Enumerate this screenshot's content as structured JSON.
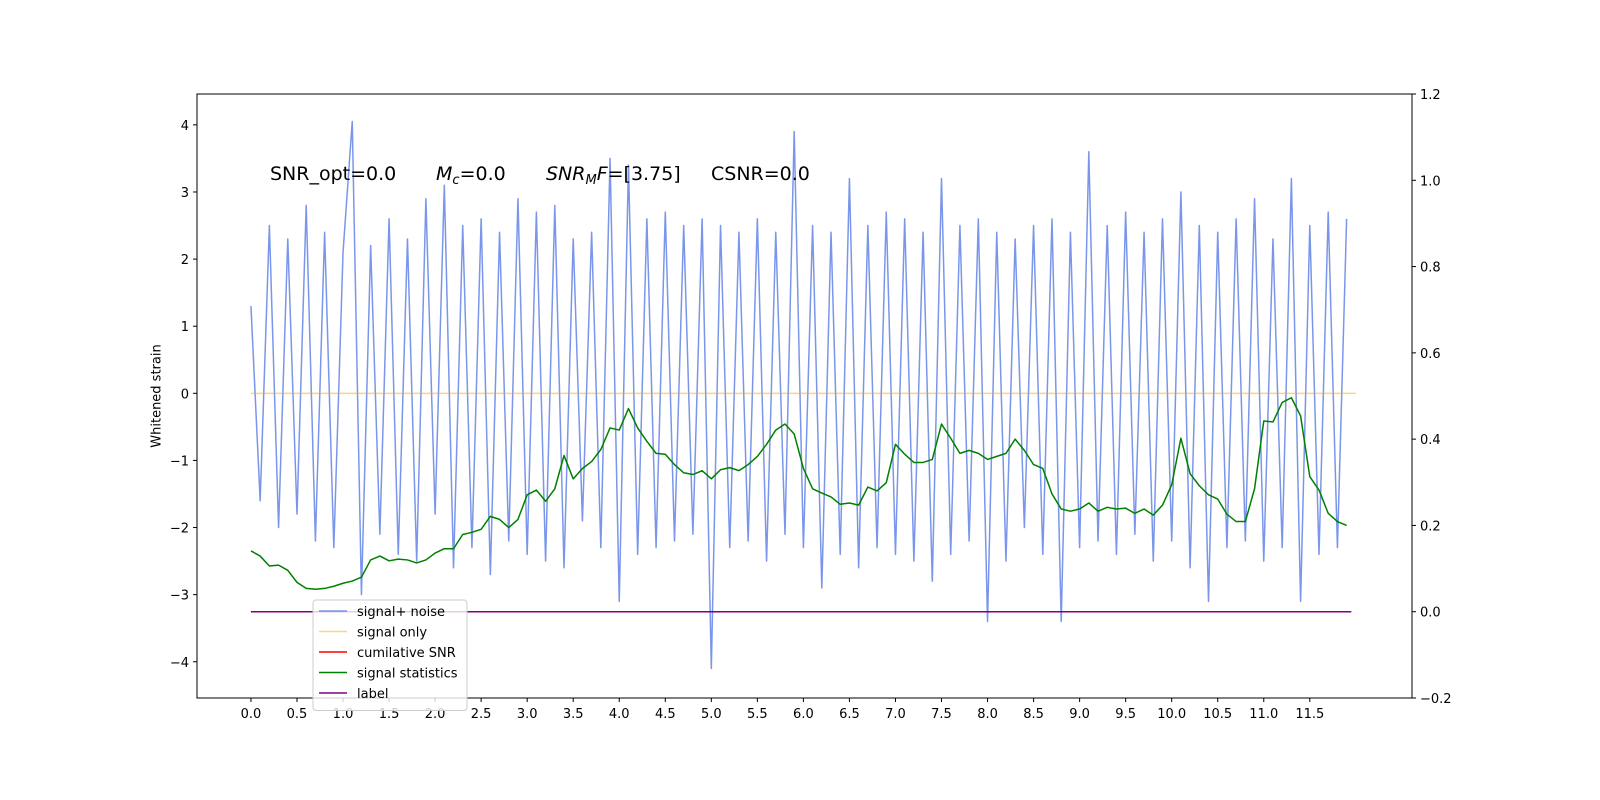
{
  "chart_data": {
    "type": "line",
    "ylabel": "Whitened strain",
    "annotations": [
      [
        {
          "text": "SNR_opt=0.0"
        }
      ],
      [
        {
          "text": "M",
          "style": "italic"
        },
        {
          "text": "c",
          "style": "sub"
        },
        {
          "text": "=0.0"
        }
      ],
      [
        {
          "text": "SNR",
          "style": "italic"
        },
        {
          "text": "M",
          "style": "sub"
        },
        {
          "text": "F",
          "style": "italic"
        },
        {
          "text": "=[3.75]"
        }
      ],
      [
        {
          "text": "CSNR=0.0"
        }
      ]
    ],
    "xlim": [
      -0.586,
      12.61
    ],
    "ylim": [
      -4.54,
      4.46
    ],
    "y2lim": [
      -0.2,
      1.2
    ],
    "xticks": [
      {
        "value": 0,
        "label": "0.0"
      },
      0.5,
      {
        "value": 1,
        "label": "1.0"
      },
      1.5,
      {
        "value": 2,
        "label": "2.0"
      },
      2.5,
      {
        "value": 3,
        "label": "3.0"
      },
      3.5,
      {
        "value": 4,
        "label": "4.0"
      },
      4.5,
      {
        "value": 5,
        "label": "5.0"
      },
      5.5,
      {
        "value": 6,
        "label": "6.0"
      },
      6.5,
      {
        "value": 7,
        "label": "7.0"
      },
      7.5,
      {
        "value": 8,
        "label": "8.0"
      },
      8.5,
      {
        "value": 9,
        "label": "9.0"
      },
      9.5,
      {
        "value": 10,
        "label": "10.0"
      },
      10.5,
      {
        "value": 11,
        "label": "11.0"
      },
      11.5
    ],
    "yticks": [
      {
        "value": -4,
        "label": "−4"
      },
      {
        "value": -3,
        "label": "−3"
      },
      {
        "value": -2,
        "label": "−2"
      },
      {
        "value": -1,
        "label": "−1"
      },
      0,
      1,
      2,
      3,
      4
    ],
    "y2ticks": [
      {
        "value": -0.2,
        "label": "−0.2"
      },
      {
        "value": 0,
        "label": "0.0"
      },
      0.2,
      0.4,
      0.6,
      0.8,
      {
        "value": 1,
        "label": "1.0"
      },
      1.2
    ],
    "x": [
      0,
      0.1,
      0.2,
      0.3,
      0.4,
      0.5,
      0.6,
      0.7,
      0.8,
      0.9,
      1,
      1.1,
      1.2,
      1.3,
      1.4,
      1.5,
      1.6,
      1.7,
      1.8,
      1.9,
      2,
      2.1,
      2.2,
      2.3,
      2.4,
      2.5,
      2.6,
      2.7,
      2.8,
      2.9,
      3,
      3.1,
      3.2,
      3.3,
      3.4,
      3.5,
      3.6,
      3.7,
      3.8,
      3.9,
      4,
      4.1,
      4.2,
      4.3,
      4.4,
      4.5,
      4.6,
      4.7,
      4.8,
      4.9,
      5,
      5.1,
      5.2,
      5.3,
      5.4,
      5.5,
      5.6,
      5.7,
      5.8,
      5.9,
      6,
      6.1,
      6.2,
      6.3,
      6.4,
      6.5,
      6.6,
      6.7,
      6.8,
      6.9,
      7,
      7.1,
      7.2,
      7.3,
      7.4,
      7.5,
      7.6,
      7.7,
      7.8,
      7.9,
      8,
      8.1,
      8.2,
      8.3,
      8.4,
      8.5,
      8.6,
      8.7,
      8.8,
      8.9,
      9,
      9.1,
      9.2,
      9.3,
      9.4,
      9.5,
      9.6,
      9.7,
      9.8,
      9.9,
      10,
      10.1,
      10.2,
      10.3,
      10.4,
      10.5,
      10.6,
      10.7,
      10.8,
      10.9,
      11,
      11.1,
      11.2,
      11.3,
      11.4,
      11.5,
      11.6,
      11.7,
      11.8,
      11.9
    ],
    "legend": "lower left",
    "series": [
      {
        "name": "signal+ noise",
        "color": "#4169e1",
        "opacity": 0.7,
        "values": [
          1.3,
          -1.6,
          2.5,
          -2.0,
          2.3,
          -1.8,
          2.8,
          -2.2,
          2.4,
          -2.3,
          2.1,
          4.05,
          -3.0,
          2.2,
          -2.1,
          2.6,
          -2.4,
          2.3,
          -2.5,
          2.9,
          -1.8,
          3.1,
          -2.6,
          2.5,
          -2.3,
          2.6,
          -2.7,
          2.4,
          -2.2,
          2.9,
          -2.4,
          2.7,
          -2.5,
          2.8,
          -2.6,
          2.3,
          -1.9,
          2.4,
          -2.3,
          3.5,
          -3.1,
          3.4,
          -2.4,
          2.6,
          -2.3,
          2.7,
          -2.2,
          2.5,
          -2.1,
          2.6,
          -4.1,
          2.5,
          -2.3,
          2.4,
          -2.2,
          2.6,
          -2.5,
          2.4,
          -2.1,
          3.9,
          -2.3,
          2.5,
          -2.9,
          2.4,
          -2.4,
          3.2,
          -2.6,
          2.5,
          -2.3,
          2.7,
          -2.4,
          2.6,
          -2.5,
          2.4,
          -2.8,
          3.2,
          -2.4,
          2.5,
          -2.2,
          2.6,
          -3.4,
          2.4,
          -2.5,
          2.3,
          -2.0,
          2.5,
          -2.4,
          2.6,
          -3.4,
          2.4,
          -2.3,
          3.6,
          -2.2,
          2.5,
          -2.4,
          2.7,
          -2.1,
          2.4,
          -2.5,
          2.6,
          -2.2,
          3.0,
          -2.6,
          2.5,
          -3.1,
          2.4,
          -2.3,
          2.6,
          -2.2,
          2.9,
          -2.5,
          2.3,
          -2.3,
          3.2,
          -3.1,
          2.5,
          -2.4,
          2.7,
          -2.3,
          2.6
        ]
      },
      {
        "name": "signal only",
        "color": "#ffa500",
        "opacity": 0.5,
        "x": [
          0,
          12
        ],
        "values": [
          0,
          0
        ]
      },
      {
        "name": "cumilative SNR",
        "color": "#ff0000",
        "axis": "y2",
        "x": [
          0,
          11.95
        ],
        "values": [
          0,
          0
        ]
      },
      {
        "name": "signal statistics",
        "color": "#008000",
        "axis": "y2",
        "values": [
          0.141,
          0.129,
          0.106,
          0.108,
          0.096,
          0.068,
          0.054,
          0.052,
          0.054,
          0.059,
          0.066,
          0.071,
          0.08,
          0.12,
          0.129,
          0.118,
          0.122,
          0.12,
          0.113,
          0.12,
          0.136,
          0.146,
          0.146,
          0.179,
          0.184,
          0.191,
          0.221,
          0.214,
          0.195,
          0.214,
          0.271,
          0.282,
          0.256,
          0.285,
          0.362,
          0.308,
          0.332,
          0.348,
          0.376,
          0.426,
          0.421,
          0.471,
          0.426,
          0.395,
          0.367,
          0.365,
          0.341,
          0.322,
          0.318,
          0.327,
          0.308,
          0.329,
          0.334,
          0.327,
          0.341,
          0.36,
          0.388,
          0.421,
          0.435,
          0.412,
          0.332,
          0.285,
          0.275,
          0.266,
          0.249,
          0.252,
          0.247,
          0.289,
          0.28,
          0.299,
          0.388,
          0.365,
          0.346,
          0.346,
          0.353,
          0.435,
          0.402,
          0.367,
          0.374,
          0.367,
          0.353,
          0.36,
          0.367,
          0.4,
          0.374,
          0.341,
          0.332,
          0.273,
          0.238,
          0.233,
          0.238,
          0.252,
          0.233,
          0.242,
          0.238,
          0.24,
          0.228,
          0.238,
          0.224,
          0.247,
          0.294,
          0.402,
          0.32,
          0.292,
          0.271,
          0.261,
          0.226,
          0.209,
          0.209,
          0.285,
          0.442,
          0.44,
          0.485,
          0.496,
          0.454,
          0.313,
          0.282,
          0.228,
          0.209,
          0.2
        ]
      },
      {
        "name": "label",
        "color": "#800080",
        "axis": "y2",
        "x": [
          0,
          11.95
        ],
        "values": [
          0,
          0
        ]
      }
    ]
  }
}
